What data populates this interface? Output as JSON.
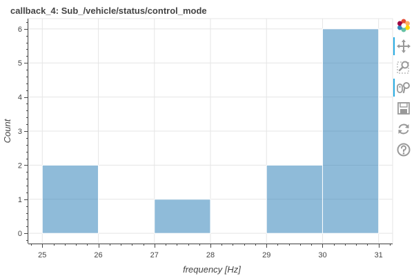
{
  "chart_data": {
    "type": "bar",
    "title": "callback_4: Sub_/vehicle/status/control_mode",
    "xlabel": "frequency [Hz]",
    "ylabel": "Count",
    "bins": [
      {
        "x0": 25,
        "x1": 26,
        "count": 2
      },
      {
        "x0": 26,
        "x1": 27,
        "count": 0
      },
      {
        "x0": 27,
        "x1": 28,
        "count": 1
      },
      {
        "x0": 28,
        "x1": 29,
        "count": 0
      },
      {
        "x0": 29,
        "x1": 30,
        "count": 2
      },
      {
        "x0": 30,
        "x1": 31,
        "count": 6
      }
    ],
    "xlim": [
      24.75,
      31.25
    ],
    "ylim": [
      -0.3,
      6.3
    ],
    "xticks": [
      "25",
      "26",
      "27",
      "28",
      "29",
      "30",
      "31"
    ],
    "yticks": [
      "0",
      "1",
      "2",
      "3",
      "4",
      "5",
      "6"
    ],
    "bar_color": "#1f77b4",
    "grid": true,
    "legend": "none"
  },
  "toolbar": {
    "tools": [
      {
        "name": "bokeh-logo-icon",
        "active": false
      },
      {
        "name": "pan-icon",
        "active": true
      },
      {
        "name": "box-zoom-icon",
        "active": false
      },
      {
        "name": "wheel-zoom-icon",
        "active": true
      },
      {
        "name": "save-icon",
        "active": false
      },
      {
        "name": "reset-icon",
        "active": false
      },
      {
        "name": "help-icon",
        "active": false
      }
    ]
  }
}
